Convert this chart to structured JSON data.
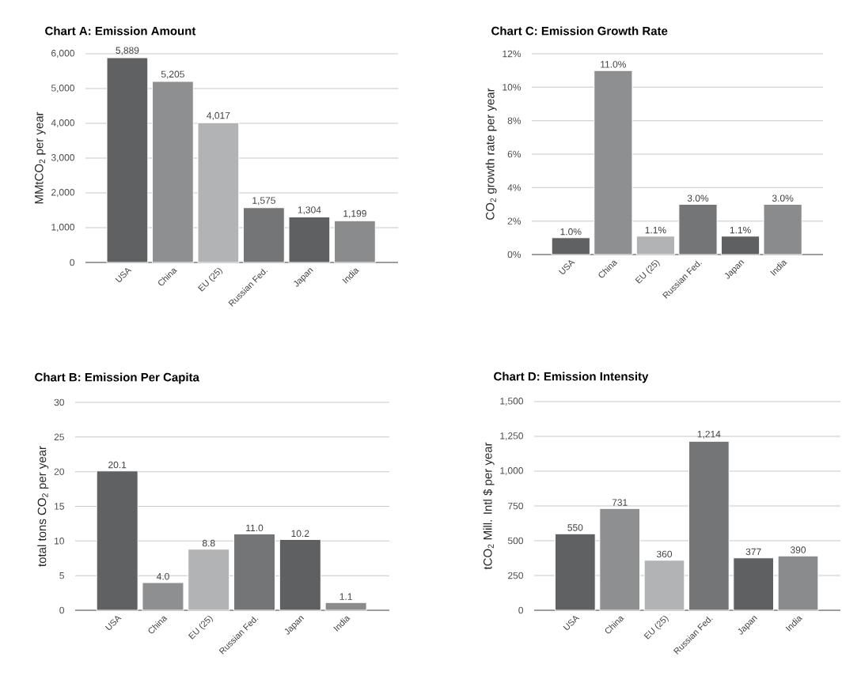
{
  "chart_data": [
    {
      "type": "bar",
      "title": "Chart A: Emission Amount",
      "ylabel": "MMtCO$_{2}$ per year",
      "categories": [
        "USA",
        "China",
        "EU (25)",
        "Russian Fed.",
        "Japan",
        "India"
      ],
      "values": [
        5889,
        5205,
        4017,
        1575,
        1304,
        1199
      ],
      "colors": [
        "#5f6163",
        "#8e8f91",
        "#b2b3b5",
        "#737577",
        "#5e6062",
        "#8a8b8d"
      ],
      "value_labels": [
        "5,889",
        "5,205",
        "4,017",
        "1,575",
        "1,304",
        "1,199"
      ],
      "ylim": [
        0,
        6000
      ],
      "yticks": [
        0,
        {
          "value": 1000,
          "label": "1,000"
        },
        {
          "value": 2000,
          "label": "2,000"
        },
        {
          "value": 3000,
          "label": "3,000"
        },
        {
          "value": 4000,
          "label": "4,000"
        },
        {
          "value": 5000,
          "label": "5,000"
        },
        {
          "value": 6000,
          "label": "6,000"
        }
      ],
      "grid": "y"
    },
    {
      "type": "bar",
      "title": "Chart C: Emission Growth Rate",
      "ylabel": "CO$_{2}$ growth rate per year",
      "categories": [
        "USA",
        "China",
        "EU (25)",
        "Russian Fed.",
        "Japan",
        "India"
      ],
      "values": [
        1.0,
        11.0,
        1.1,
        3.0,
        1.1,
        3.0
      ],
      "colors": [
        "#5f6163",
        "#8e8f91",
        "#b2b3b5",
        "#737577",
        "#5e6062",
        "#8a8b8d"
      ],
      "value_labels": [
        "1.0%",
        "11.0%",
        "1.1%",
        "3.0%",
        "1.1%",
        "3.0%"
      ],
      "ylim": [
        0,
        12
      ],
      "yticks": [
        {
          "value": 0,
          "label": "0%"
        },
        {
          "value": 2,
          "label": "2%"
        },
        {
          "value": 4,
          "label": "4%"
        },
        {
          "value": 6,
          "label": "6%"
        },
        {
          "value": 8,
          "label": "8%"
        },
        {
          "value": 10,
          "label": "10%"
        },
        {
          "value": 12,
          "label": "12%"
        }
      ],
      "grid": "y"
    },
    {
      "type": "bar",
      "title": "Chart B: Emission Per Capita",
      "ylabel": "total tons CO$_{2}$ per year",
      "categories": [
        "USA",
        "China",
        "EU (25)",
        "Russian Fed.",
        "Japan",
        "India"
      ],
      "values": [
        20.1,
        4.0,
        8.8,
        11.0,
        10.2,
        1.1
      ],
      "colors": [
        "#5f6163",
        "#8e8f91",
        "#b2b3b5",
        "#737577",
        "#5e6062",
        "#8a8b8d"
      ],
      "value_labels": [
        "20.1",
        "4.0",
        "8.8",
        "11.0",
        "10.2",
        "1.1"
      ],
      "ylim": [
        0,
        30
      ],
      "yticks": [
        0,
        5,
        10,
        15,
        20,
        25,
        30
      ],
      "grid": "y"
    },
    {
      "type": "bar",
      "title": "Chart D: Emission Intensity",
      "ylabel": "tCO$_{2}$ Mill. Intl $ per year",
      "categories": [
        "USA",
        "China",
        "EU (25)",
        "Russian Fed.",
        "Japan",
        "India"
      ],
      "values": [
        550,
        731,
        360,
        1214,
        377,
        390
      ],
      "colors": [
        "#5f6163",
        "#8e8f91",
        "#b2b3b5",
        "#737577",
        "#5e6062",
        "#8a8b8d"
      ],
      "value_labels": [
        "550",
        "731",
        "360",
        "1,214",
        "377",
        "390"
      ],
      "ylim": [
        0,
        1500
      ],
      "yticks": [
        0,
        250,
        500,
        750,
        {
          "value": 1000,
          "label": "1,000"
        },
        {
          "value": 1250,
          "label": "1,250"
        },
        {
          "value": 1500,
          "label": "1,500"
        }
      ],
      "grid": "y"
    }
  ]
}
